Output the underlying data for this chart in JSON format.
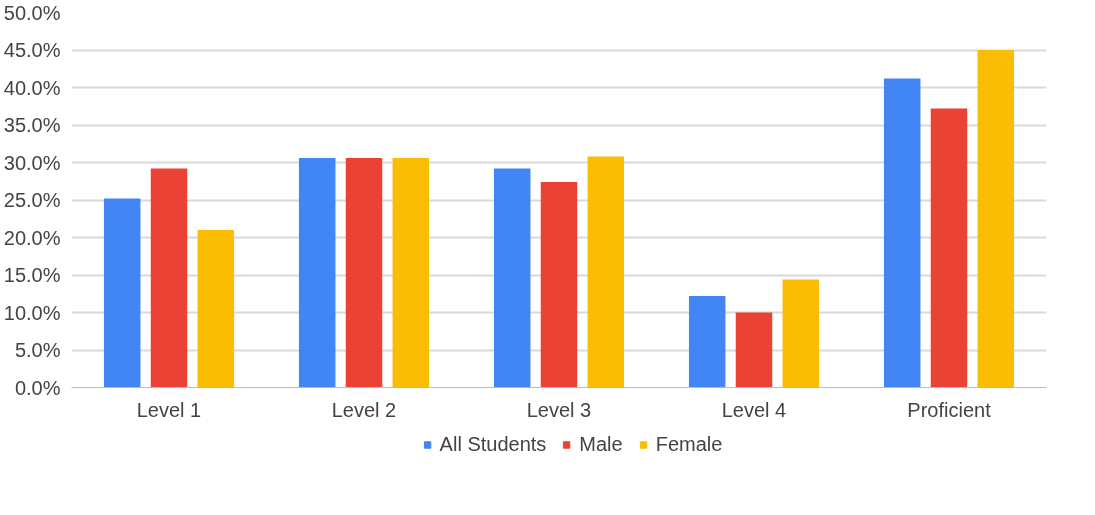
{
  "chart_data": {
    "type": "bar",
    "categories": [
      "Level 1",
      "Level 2",
      "Level 3",
      "Level 4",
      "Proficient"
    ],
    "series": [
      {
        "name": "All Students",
        "color": "#4285f4",
        "values": [
          25.2,
          30.6,
          29.2,
          12.2,
          41.2
        ]
      },
      {
        "name": "Male",
        "color": "#ea4335",
        "values": [
          29.2,
          30.6,
          27.4,
          10.0,
          37.2
        ]
      },
      {
        "name": "Female",
        "color": "#fbbc04",
        "values": [
          21.0,
          30.6,
          30.8,
          14.4,
          45.0
        ]
      }
    ],
    "ylim": [
      0,
      50
    ],
    "yticks": [
      {
        "value": 0,
        "label": "0.0%"
      },
      {
        "value": 5,
        "label": "5.0%"
      },
      {
        "value": 10,
        "label": "10.0%"
      },
      {
        "value": 15,
        "label": "15.0%"
      },
      {
        "value": 20,
        "label": "20.0%"
      },
      {
        "value": 25,
        "label": "25.0%"
      },
      {
        "value": 30,
        "label": "30.0%"
      },
      {
        "value": 35,
        "label": "35.0%"
      },
      {
        "value": 40,
        "label": "40.0%"
      },
      {
        "value": 45,
        "label": "45.0%"
      },
      {
        "value": 50,
        "label": "50.0%"
      }
    ],
    "grid": "y",
    "legend": "bottom"
  }
}
